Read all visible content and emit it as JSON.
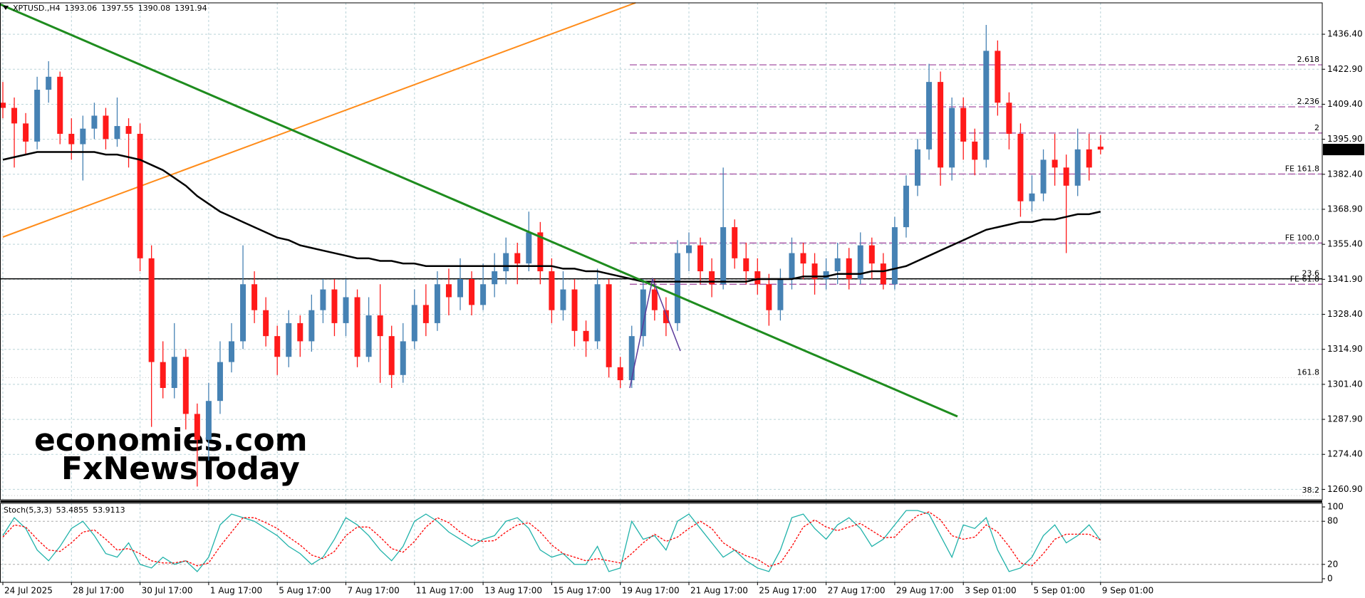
{
  "chart_data": [
    {
      "type": "candlestick",
      "title": "XPTUSD.,H4",
      "x": [
        "24 Jul 2025",
        null,
        null,
        null,
        null,
        null,
        "28 Jul 17:00",
        null,
        null,
        null,
        null,
        null,
        "30 Jul 17:00",
        null,
        null,
        null,
        null,
        null,
        "1 Aug 17:00",
        null,
        null,
        null,
        null,
        null,
        "5 Aug 17:00",
        null,
        null,
        null,
        null,
        null,
        "7 Aug 17:00",
        null,
        null,
        null,
        null,
        null,
        "11 Aug 17:00",
        null,
        null,
        null,
        null,
        null,
        "13 Aug 17:00",
        null,
        null,
        null,
        null,
        null,
        "15 Aug 17:00",
        null,
        null,
        null,
        null,
        null,
        "19 Aug 17:00",
        null,
        null,
        null,
        null,
        null,
        "21 Aug 17:00",
        null,
        null,
        null,
        null,
        null,
        "25 Aug 17:00",
        null,
        null,
        null,
        null,
        null,
        "27 Aug 17:00",
        null,
        null,
        null,
        null,
        null,
        "29 Aug 17:00",
        null,
        null,
        null,
        null,
        null,
        "3 Sep 01:00",
        null,
        null,
        null,
        null,
        null,
        "5 Sep 01:00",
        null,
        null,
        null,
        null,
        null,
        "9 Sep 01:00"
      ],
      "open": [
        1410,
        1408,
        1402,
        1395,
        1415,
        1420,
        1398,
        1394,
        1400,
        1405,
        1396,
        1401,
        1398,
        1350,
        1310,
        1300,
        1312,
        1290,
        1280,
        1295,
        1310,
        1318,
        1340,
        1330,
        1320,
        1312,
        1325,
        1318,
        1330,
        1338,
        1325,
        1335,
        1312,
        1328,
        1320,
        1305,
        1318,
        1332,
        1325,
        1340,
        1335,
        1342,
        1332,
        1340,
        1345,
        1352,
        1348,
        1360,
        1345,
        1330,
        1338,
        1322,
        1318,
        1340,
        1308,
        1303,
        1320,
        1338,
        1330,
        1325,
        1352,
        1355,
        1345,
        1340,
        1362,
        1350,
        1345,
        1340,
        1330,
        1342,
        1352,
        1348,
        1342,
        1345,
        1350,
        1342,
        1355,
        1348,
        1340,
        1362,
        1378,
        1392,
        1418,
        1385,
        1408,
        1395,
        1388,
        1430,
        1410,
        1398,
        1372,
        1375,
        1388,
        1385,
        1378,
        1392,
        1393.06
      ],
      "high": [
        1418,
        1412,
        1406,
        1420,
        1426,
        1422,
        1404,
        1405,
        1410,
        1408,
        1412,
        1404,
        1402,
        1355,
        1318,
        1325,
        1315,
        1294,
        1302,
        1318,
        1325,
        1355,
        1345,
        1335,
        1324,
        1330,
        1328,
        1336,
        1342,
        1342,
        1342,
        1338,
        1335,
        1340,
        1324,
        1325,
        1338,
        1340,
        1345,
        1346,
        1350,
        1345,
        1348,
        1352,
        1358,
        1356,
        1368,
        1364,
        1350,
        1345,
        1342,
        1326,
        1346,
        1342,
        1312,
        1324,
        1342,
        1342,
        1335,
        1357,
        1360,
        1358,
        1350,
        1385,
        1365,
        1356,
        1350,
        1344,
        1346,
        1358,
        1356,
        1352,
        1350,
        1356,
        1354,
        1360,
        1358,
        1352,
        1366,
        1382,
        1396,
        1425,
        1422,
        1412,
        1412,
        1400,
        1440,
        1434,
        1414,
        1402,
        1382,
        1392,
        1398,
        1390,
        1400,
        1398,
        1397.55
      ],
      "low": [
        1404,
        1385,
        1390,
        1392,
        1410,
        1394,
        1388,
        1380,
        1396,
        1392,
        1393,
        1385,
        1345,
        1285,
        1296,
        1296,
        1284,
        1262,
        1272,
        1290,
        1306,
        1315,
        1325,
        1316,
        1305,
        1308,
        1312,
        1314,
        1325,
        1320,
        1320,
        1308,
        1310,
        1302,
        1300,
        1302,
        1315,
        1320,
        1322,
        1328,
        1330,
        1328,
        1330,
        1335,
        1340,
        1340,
        1345,
        1340,
        1325,
        1326,
        1316,
        1312,
        1315,
        1304,
        1300,
        1300,
        1316,
        1326,
        1320,
        1322,
        1345,
        1340,
        1335,
        1338,
        1346,
        1340,
        1336,
        1324,
        1326,
        1338,
        1342,
        1336,
        1338,
        1340,
        1338,
        1340,
        1342,
        1338,
        1338,
        1358,
        1374,
        1388,
        1378,
        1380,
        1388,
        1382,
        1385,
        1405,
        1392,
        1366,
        1368,
        1372,
        1378,
        1352,
        1374,
        1380,
        1390.08
      ],
      "close": [
        1408,
        1402,
        1395,
        1415,
        1420,
        1398,
        1394,
        1400,
        1405,
        1396,
        1401,
        1398,
        1350,
        1310,
        1300,
        1312,
        1290,
        1280,
        1295,
        1310,
        1318,
        1340,
        1330,
        1320,
        1312,
        1325,
        1318,
        1330,
        1338,
        1325,
        1335,
        1312,
        1328,
        1320,
        1305,
        1318,
        1332,
        1325,
        1340,
        1335,
        1342,
        1332,
        1340,
        1345,
        1352,
        1348,
        1360,
        1345,
        1330,
        1338,
        1322,
        1318,
        1340,
        1308,
        1303,
        1320,
        1338,
        1330,
        1325,
        1352,
        1355,
        1345,
        1340,
        1362,
        1350,
        1345,
        1340,
        1330,
        1342,
        1352,
        1348,
        1342,
        1345,
        1350,
        1342,
        1355,
        1348,
        1340,
        1362,
        1378,
        1392,
        1418,
        1385,
        1408,
        1395,
        1388,
        1430,
        1410,
        1398,
        1372,
        1375,
        1388,
        1385,
        1378,
        1392,
        1385,
        1391.94
      ],
      "up_color": "#4682b4",
      "down_color": "#ff1a1a",
      "ma": {
        "color": "#000000",
        "values": [
          1388,
          1389,
          1390,
          1391,
          1391,
          1391,
          1391,
          1391,
          1391,
          1390,
          1390,
          1389,
          1388,
          1386,
          1384,
          1381,
          1378,
          1374,
          1371,
          1368,
          1366,
          1364,
          1362,
          1360,
          1358,
          1357,
          1355,
          1354,
          1353,
          1352,
          1351,
          1350,
          1350,
          1349,
          1349,
          1348,
          1348,
          1347,
          1347,
          1347,
          1347,
          1347,
          1347,
          1347,
          1347,
          1347,
          1347,
          1347,
          1347,
          1346,
          1346,
          1345,
          1345,
          1344,
          1343,
          1342,
          1341,
          1341,
          1341,
          1341,
          1341,
          1341,
          1341,
          1341,
          1341,
          1341,
          1342,
          1342,
          1342,
          1342,
          1343,
          1343,
          1343,
          1344,
          1344,
          1344,
          1345,
          1345,
          1346,
          1347,
          1349,
          1351,
          1353,
          1355,
          1357,
          1359,
          1361,
          1362,
          1363,
          1364,
          1364,
          1365,
          1365,
          1366,
          1367,
          1367,
          1368
        ]
      },
      "fe_levels": [
        {
          "label": "2.618",
          "value": 1424.6
        },
        {
          "label": "2.236",
          "value": 1408.4
        },
        {
          "label": "2",
          "value": 1398.3
        },
        {
          "label": "FE 161.8",
          "value": 1382.5
        },
        {
          "label": "FE 100.0",
          "value": 1355.9
        },
        {
          "label": "FE 61.8",
          "value": 1340.0
        }
      ],
      "fe_color": "#9a3f9a",
      "retracement": [
        {
          "label": "23.6",
          "value": 1342.1
        },
        {
          "label": "161.8",
          "value": 1304.0
        },
        {
          "label": "38.2",
          "value": 1258.5
        }
      ],
      "hline": 1342.1,
      "ylim": [
        1256.9,
        1448.5
      ],
      "yticks": [
        {
          "value": 1436.4,
          "label": "1436.40"
        },
        {
          "value": 1422.9,
          "label": "1422.90"
        },
        {
          "value": 1409.4,
          "label": "1409.40"
        },
        {
          "value": 1395.9,
          "label": "1395.90"
        },
        {
          "value": 1382.4,
          "label": "1382.40"
        },
        {
          "value": 1368.9,
          "label": "1368.90"
        },
        {
          "value": 1355.4,
          "label": "1355.40"
        },
        {
          "value": 1341.9,
          "label": "1341.90"
        },
        {
          "value": 1328.4,
          "label": "1328.40"
        },
        {
          "value": 1314.9,
          "label": "1314.90"
        },
        {
          "value": 1301.4,
          "label": "1301.40"
        },
        {
          "value": 1287.9,
          "label": "1287.90"
        },
        {
          "value": 1274.4,
          "label": "1274.40"
        },
        {
          "value": 1260.9,
          "label": "1260.90"
        }
      ],
      "grid": true
    },
    {
      "type": "line",
      "title": "Stoch(5,3,3)",
      "series": [
        {
          "color": "#20b2aa",
          "style": "solid",
          "values": [
            60,
            85,
            70,
            40,
            25,
            45,
            70,
            80,
            60,
            35,
            30,
            50,
            20,
            15,
            30,
            20,
            25,
            10,
            30,
            75,
            90,
            85,
            80,
            70,
            60,
            45,
            35,
            20,
            30,
            55,
            85,
            75,
            60,
            40,
            25,
            45,
            80,
            90,
            80,
            65,
            55,
            45,
            55,
            60,
            80,
            85,
            70,
            40,
            30,
            35,
            20,
            20,
            45,
            10,
            15,
            80,
            55,
            60,
            40,
            80,
            90,
            70,
            50,
            30,
            40,
            25,
            15,
            10,
            40,
            85,
            90,
            70,
            55,
            75,
            85,
            70,
            45,
            55,
            75,
            95,
            95,
            90,
            60,
            30,
            75,
            70,
            85,
            40,
            10,
            15,
            30,
            60,
            75,
            50,
            60,
            75,
            53.4855
          ]
        },
        {
          "color": "#ff0000",
          "style": "dashed",
          "values": [
            58,
            75,
            72,
            55,
            40,
            38,
            50,
            65,
            68,
            55,
            40,
            42,
            35,
            25,
            22,
            22,
            25,
            18,
            22,
            45,
            65,
            85,
            85,
            78,
            70,
            58,
            47,
            33,
            28,
            38,
            60,
            72,
            72,
            58,
            42,
            37,
            52,
            72,
            85,
            78,
            65,
            55,
            52,
            53,
            65,
            75,
            78,
            65,
            47,
            35,
            30,
            25,
            28,
            25,
            22,
            35,
            50,
            62,
            52,
            58,
            70,
            80,
            70,
            50,
            40,
            32,
            27,
            17,
            22,
            45,
            72,
            82,
            72,
            67,
            72,
            77,
            67,
            57,
            58,
            75,
            88,
            93,
            82,
            60,
            55,
            58,
            75,
            65,
            45,
            22,
            18,
            35,
            55,
            62,
            62,
            62,
            53.9113
          ]
        }
      ],
      "levels": [
        80,
        20
      ],
      "ylim": [
        -5,
        105
      ],
      "yticks": [
        100,
        80,
        20,
        0
      ]
    }
  ],
  "watermark": [
    "economies.com",
    "FxNewsToday"
  ]
}
